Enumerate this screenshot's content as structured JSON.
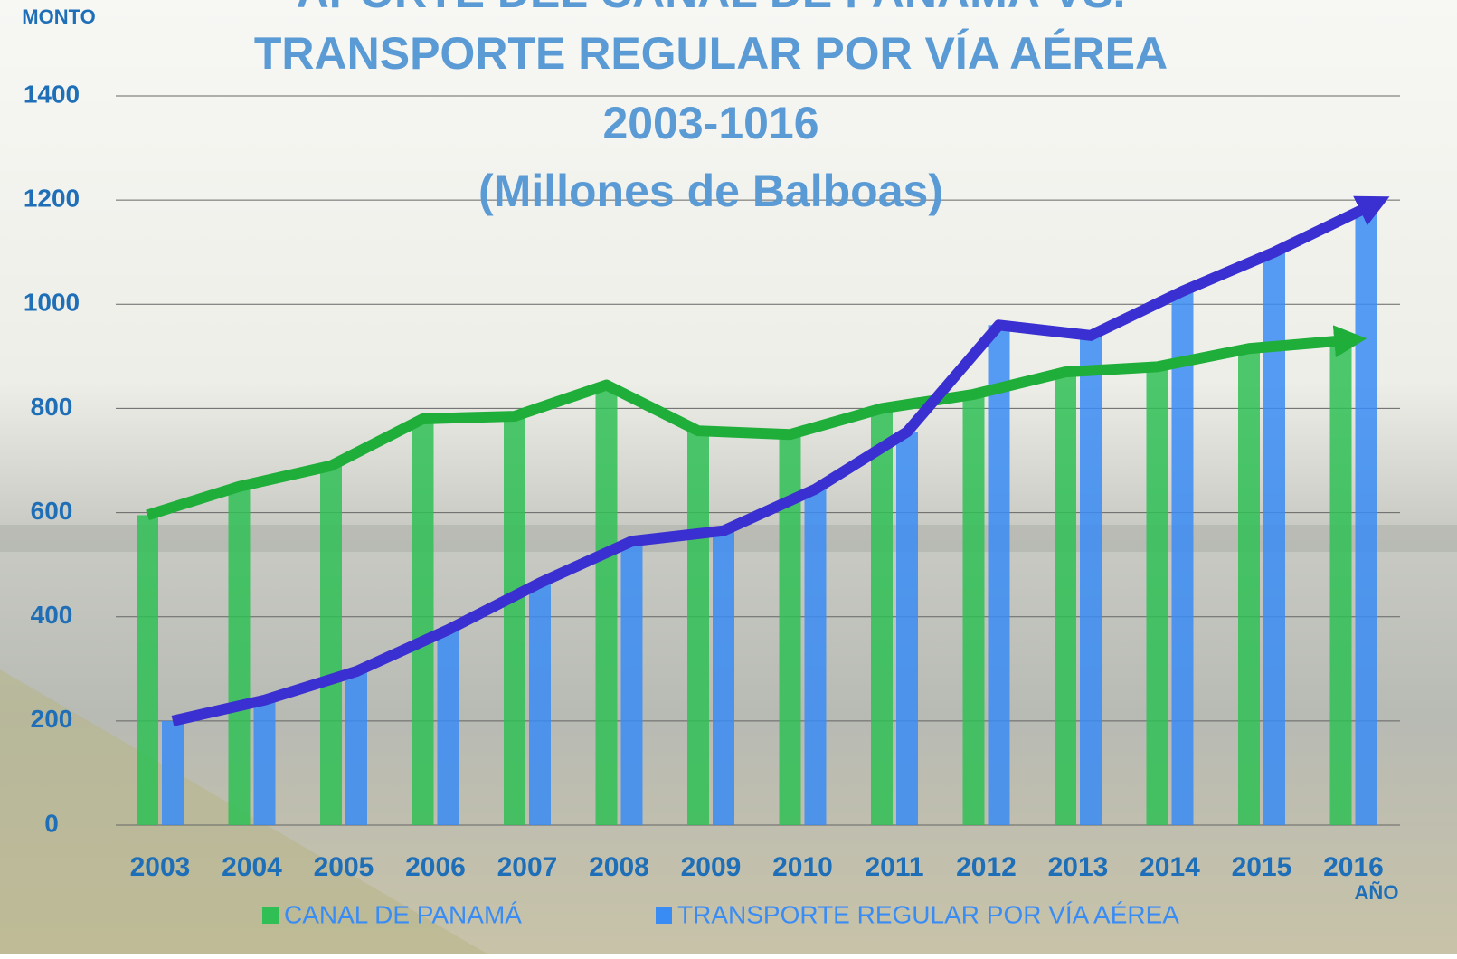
{
  "chart_data": {
    "type": "bar",
    "title": [
      "APORTE DEL CANAL DE PANAMÁ VS.",
      "TRANSPORTE REGULAR POR VÍA AÉREA",
      "2003-1016",
      "(Millones de Balboas)"
    ],
    "y_label": "MONTO",
    "x_label": "AÑO",
    "categories": [
      "2003",
      "2004",
      "2005",
      "2006",
      "2007",
      "2008",
      "2009",
      "2010",
      "2011",
      "2012",
      "2013",
      "2014",
      "2015",
      "2016"
    ],
    "series": [
      {
        "name": "CANAL DE PANAMÁ",
        "color": "#2fbf55",
        "line_color": "#1fae3a",
        "values": [
          595,
          650,
          690,
          780,
          785,
          845,
          757,
          750,
          800,
          827,
          870,
          880,
          915,
          930
        ]
      },
      {
        "name": "TRANSPORTE REGULAR POR VÍA AÉREA",
        "color": "#3a8cf5",
        "line_color": "#3a2fd0",
        "values": [
          200,
          240,
          295,
          375,
          465,
          545,
          565,
          645,
          755,
          960,
          940,
          1025,
          1100,
          1185
        ]
      }
    ],
    "ylim": [
      0,
      1400
    ],
    "yticks": [
      0,
      200,
      400,
      600,
      800,
      1000,
      1200,
      1400
    ],
    "grid": true
  }
}
